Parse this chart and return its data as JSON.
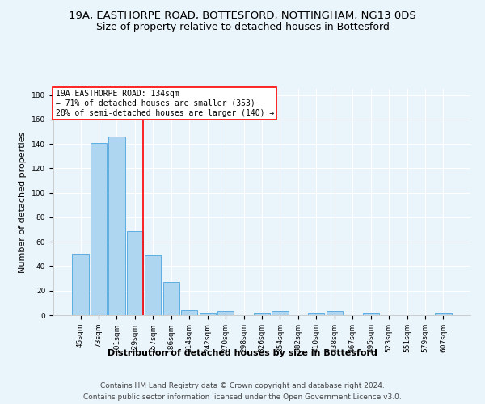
{
  "title_line1": "19A, EASTHORPE ROAD, BOTTESFORD, NOTTINGHAM, NG13 0DS",
  "title_line2": "Size of property relative to detached houses in Bottesford",
  "xlabel": "Distribution of detached houses by size in Bottesford",
  "ylabel": "Number of detached properties",
  "categories": [
    "45sqm",
    "73sqm",
    "101sqm",
    "129sqm",
    "157sqm",
    "186sqm",
    "214sqm",
    "242sqm",
    "270sqm",
    "298sqm",
    "326sqm",
    "354sqm",
    "382sqm",
    "410sqm",
    "438sqm",
    "467sqm",
    "495sqm",
    "523sqm",
    "551sqm",
    "579sqm",
    "607sqm"
  ],
  "values": [
    50,
    141,
    146,
    69,
    49,
    27,
    4,
    2,
    3,
    0,
    2,
    3,
    0,
    2,
    3,
    0,
    2,
    0,
    0,
    0,
    2
  ],
  "bar_color": "#AED6F1",
  "bar_edge_color": "#5DADE2",
  "vline_index": 3,
  "annotation_text_line1": "19A EASTHORPE ROAD: 134sqm",
  "annotation_text_line2": "← 71% of detached houses are smaller (353)",
  "annotation_text_line3": "28% of semi-detached houses are larger (140) →",
  "vline_color": "red",
  "annotation_box_color": "white",
  "annotation_box_edge_color": "red",
  "ylim": [
    0,
    185
  ],
  "yticks": [
    0,
    20,
    40,
    60,
    80,
    100,
    120,
    140,
    160,
    180
  ],
  "footer_line1": "Contains HM Land Registry data © Crown copyright and database right 2024.",
  "footer_line2": "Contains public sector information licensed under the Open Government Licence v3.0.",
  "background_color": "#EAF4FB",
  "grid_color": "white",
  "title1_fontsize": 9.5,
  "title2_fontsize": 9.0,
  "axis_label_fontsize": 8.0,
  "tick_fontsize": 6.5,
  "annotation_fontsize": 7.0,
  "footer_fontsize": 6.5
}
